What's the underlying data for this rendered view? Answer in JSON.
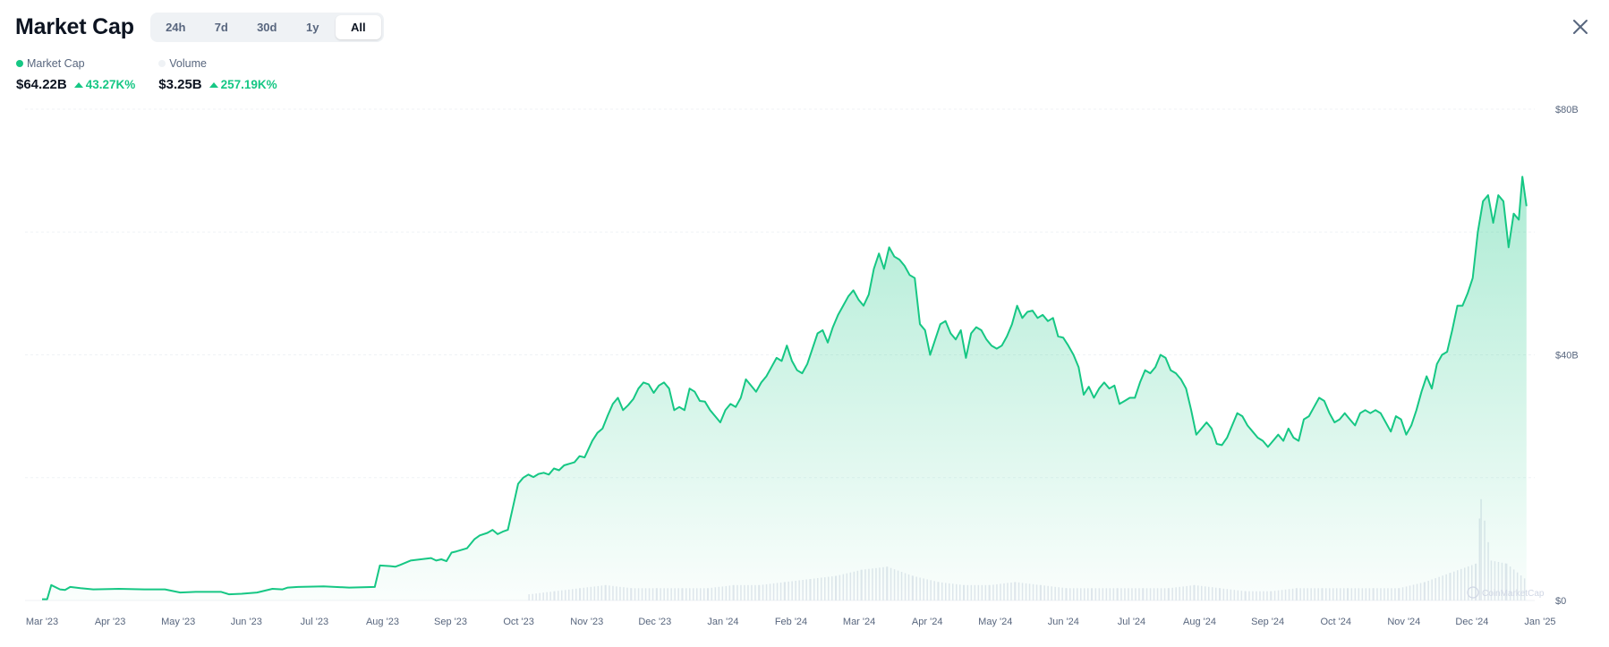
{
  "header": {
    "title": "Market Cap",
    "tabs": [
      "24h",
      "7d",
      "30d",
      "1y",
      "All"
    ],
    "active_tab": "All"
  },
  "legend": [
    {
      "label": "Market Cap",
      "value": "$64.22B",
      "change": "43.27K%",
      "color": "#16c784"
    },
    {
      "label": "Volume",
      "value": "$3.25B",
      "change": "257.19K%",
      "color": "#eff2f5"
    }
  ],
  "watermark": "CoinMarketCap",
  "chart_data": {
    "type": "area",
    "title": "Market Cap",
    "x_ticks": [
      "Mar '23",
      "Apr '23",
      "May '23",
      "Jun '23",
      "Jul '23",
      "Aug '23",
      "Sep '23",
      "Oct '23",
      "Nov '23",
      "Dec '23",
      "Jan '24",
      "Feb '24",
      "Mar '24",
      "Apr '24",
      "May '24",
      "Jun '24",
      "Jul '24",
      "Aug '24",
      "Sep '24",
      "Oct '24",
      "Nov '24",
      "Dec '24",
      "Jan '25"
    ],
    "y_ticks": [
      "$0",
      "$40B",
      "$80B"
    ],
    "y_tick_values": [
      0,
      40,
      80
    ],
    "ylim": [
      0,
      80
    ],
    "y_unit": "B USD",
    "grid": true,
    "x_range_months": [
      0,
      22
    ],
    "series": [
      {
        "name": "Market Cap",
        "color": "#16c784",
        "points": [
          [
            0.0,
            0.2
          ],
          [
            0.1,
            0.2
          ],
          [
            0.18,
            2.5
          ],
          [
            0.35,
            1.8
          ],
          [
            0.45,
            1.7
          ],
          [
            0.55,
            2.2
          ],
          [
            0.75,
            2.0
          ],
          [
            1.0,
            1.8
          ],
          [
            1.5,
            1.9
          ],
          [
            2.0,
            1.8
          ],
          [
            2.4,
            1.8
          ],
          [
            2.7,
            1.3
          ],
          [
            3.0,
            1.4
          ],
          [
            3.2,
            1.4
          ],
          [
            3.5,
            1.4
          ],
          [
            3.65,
            1.0
          ],
          [
            3.9,
            1.1
          ],
          [
            4.2,
            1.3
          ],
          [
            4.5,
            1.9
          ],
          [
            4.7,
            1.8
          ],
          [
            4.8,
            2.1
          ],
          [
            5.0,
            2.2
          ],
          [
            5.5,
            2.3
          ],
          [
            6.0,
            2.1
          ],
          [
            6.5,
            2.2
          ],
          [
            6.6,
            5.7
          ],
          [
            6.8,
            5.6
          ],
          [
            6.9,
            5.5
          ],
          [
            7.0,
            5.8
          ],
          [
            7.2,
            6.5
          ],
          [
            7.4,
            6.7
          ],
          [
            7.6,
            6.9
          ],
          [
            7.7,
            6.5
          ],
          [
            7.8,
            6.7
          ],
          [
            7.9,
            6.4
          ],
          [
            8.0,
            7.8
          ],
          [
            8.1,
            8.0
          ],
          [
            8.3,
            8.5
          ],
          [
            8.45,
            10.0
          ],
          [
            8.55,
            10.6
          ],
          [
            8.7,
            11.0
          ],
          [
            8.8,
            11.5
          ],
          [
            8.9,
            10.8
          ],
          [
            9.0,
            11.2
          ],
          [
            9.1,
            11.5
          ],
          [
            9.2,
            15.2
          ],
          [
            9.3,
            19.0
          ],
          [
            9.4,
            20.0
          ],
          [
            9.5,
            20.5
          ],
          [
            9.6,
            20.1
          ],
          [
            9.7,
            20.6
          ],
          [
            9.8,
            20.8
          ],
          [
            9.9,
            20.5
          ],
          [
            10.0,
            21.5
          ],
          [
            10.1,
            21.2
          ],
          [
            10.2,
            22.0
          ],
          [
            10.4,
            22.5
          ],
          [
            10.5,
            23.5
          ],
          [
            10.6,
            23.3
          ],
          [
            10.75,
            26.0
          ],
          [
            10.85,
            27.3
          ],
          [
            10.95,
            28.0
          ],
          [
            11.05,
            30.1
          ],
          [
            11.15,
            32.0
          ],
          [
            11.25,
            33.0
          ],
          [
            11.35,
            31.0
          ],
          [
            11.45,
            31.8
          ],
          [
            11.55,
            32.8
          ],
          [
            11.65,
            34.5
          ],
          [
            11.75,
            35.5
          ],
          [
            11.85,
            35.2
          ],
          [
            11.95,
            33.8
          ],
          [
            12.05,
            35.0
          ],
          [
            12.15,
            35.5
          ],
          [
            12.25,
            34.5
          ],
          [
            12.35,
            31.0
          ],
          [
            12.45,
            31.5
          ],
          [
            12.55,
            31.0
          ],
          [
            12.65,
            34.5
          ],
          [
            12.75,
            34.0
          ],
          [
            12.85,
            32.5
          ],
          [
            12.95,
            32.4
          ],
          [
            13.05,
            31.0
          ],
          [
            13.15,
            30.0
          ],
          [
            13.25,
            29.0
          ],
          [
            13.35,
            31.0
          ],
          [
            13.45,
            32.0
          ],
          [
            13.55,
            31.5
          ],
          [
            13.65,
            33.0
          ],
          [
            13.75,
            36.0
          ],
          [
            13.85,
            35.0
          ],
          [
            13.95,
            34.0
          ],
          [
            14.05,
            35.5
          ],
          [
            14.15,
            36.5
          ],
          [
            14.25,
            38.0
          ],
          [
            14.35,
            39.5
          ],
          [
            14.45,
            39.0
          ],
          [
            14.55,
            41.5
          ],
          [
            14.65,
            39.0
          ],
          [
            14.75,
            37.5
          ],
          [
            14.85,
            37.0
          ],
          [
            14.95,
            38.5
          ],
          [
            15.05,
            41.0
          ],
          [
            15.15,
            43.5
          ],
          [
            15.25,
            44.0
          ],
          [
            15.35,
            42.0
          ],
          [
            15.45,
            44.5
          ],
          [
            15.55,
            46.5
          ],
          [
            15.65,
            48.0
          ],
          [
            15.75,
            49.5
          ],
          [
            15.85,
            50.5
          ],
          [
            15.95,
            49.0
          ],
          [
            16.05,
            48.0
          ],
          [
            16.15,
            49.8
          ],
          [
            16.25,
            54.0
          ],
          [
            16.35,
            56.5
          ],
          [
            16.45,
            54.0
          ],
          [
            16.55,
            57.5
          ],
          [
            16.65,
            56.0
          ],
          [
            16.75,
            55.5
          ],
          [
            16.85,
            54.5
          ],
          [
            16.95,
            53.0
          ],
          [
            17.05,
            52.5
          ],
          [
            17.15,
            45.0
          ],
          [
            17.25,
            44.0
          ],
          [
            17.35,
            40.0
          ],
          [
            17.45,
            42.5
          ],
          [
            17.55,
            45.0
          ],
          [
            17.65,
            45.5
          ],
          [
            17.75,
            43.5
          ],
          [
            17.85,
            42.5
          ],
          [
            17.95,
            44.0
          ],
          [
            18.05,
            39.5
          ],
          [
            18.15,
            43.5
          ],
          [
            18.25,
            44.5
          ],
          [
            18.35,
            44.0
          ],
          [
            18.45,
            42.5
          ],
          [
            18.55,
            41.5
          ],
          [
            18.65,
            41.0
          ],
          [
            18.75,
            41.5
          ],
          [
            18.85,
            43.0
          ],
          [
            18.95,
            45.0
          ],
          [
            19.05,
            48.0
          ],
          [
            19.15,
            46.0
          ],
          [
            19.25,
            47.0
          ],
          [
            19.35,
            47.2
          ],
          [
            19.45,
            46.0
          ],
          [
            19.55,
            46.5
          ],
          [
            19.65,
            45.5
          ],
          [
            19.75,
            46.0
          ],
          [
            19.85,
            43.0
          ],
          [
            19.95,
            42.8
          ],
          [
            20.05,
            41.5
          ],
          [
            20.15,
            40.0
          ],
          [
            20.25,
            38.0
          ],
          [
            20.35,
            33.5
          ],
          [
            20.45,
            34.8
          ],
          [
            20.55,
            33.0
          ],
          [
            20.65,
            34.5
          ],
          [
            20.75,
            35.5
          ],
          [
            20.85,
            34.5
          ],
          [
            20.95,
            35.0
          ],
          [
            21.05,
            32.0
          ],
          [
            21.15,
            32.5
          ],
          [
            21.25,
            33.0
          ],
          [
            21.35,
            33.0
          ],
          [
            21.45,
            35.5
          ],
          [
            21.55,
            37.5
          ],
          [
            21.65,
            37.0
          ],
          [
            21.75,
            38.0
          ],
          [
            21.85,
            40.0
          ],
          [
            21.95,
            39.5
          ],
          [
            22.05,
            37.5
          ],
          [
            22.15,
            37.0
          ],
          [
            22.25,
            36.0
          ],
          [
            22.35,
            34.5
          ],
          [
            22.45,
            31.0
          ],
          [
            22.55,
            27.0
          ],
          [
            22.65,
            28.0
          ],
          [
            22.75,
            29.0
          ],
          [
            22.85,
            28.0
          ],
          [
            22.95,
            25.5
          ],
          [
            23.05,
            25.3
          ],
          [
            23.15,
            26.5
          ],
          [
            23.25,
            28.5
          ],
          [
            23.35,
            30.5
          ],
          [
            23.45,
            30.0
          ],
          [
            23.55,
            28.5
          ],
          [
            23.65,
            27.5
          ],
          [
            23.75,
            26.5
          ],
          [
            23.85,
            26.0
          ],
          [
            23.95,
            25.0
          ],
          [
            24.05,
            26.0
          ],
          [
            24.15,
            27.0
          ],
          [
            24.25,
            26.0
          ],
          [
            24.35,
            28.0
          ],
          [
            24.45,
            26.5
          ],
          [
            24.55,
            26.0
          ],
          [
            24.65,
            29.5
          ],
          [
            24.75,
            30.0
          ],
          [
            24.85,
            31.5
          ],
          [
            24.95,
            33.0
          ],
          [
            25.05,
            32.5
          ],
          [
            25.15,
            30.5
          ],
          [
            25.25,
            29.0
          ],
          [
            25.35,
            29.5
          ],
          [
            25.45,
            30.5
          ],
          [
            25.55,
            29.5
          ],
          [
            25.65,
            28.5
          ],
          [
            25.75,
            30.5
          ],
          [
            25.85,
            31.0
          ],
          [
            25.95,
            30.5
          ],
          [
            26.05,
            31.0
          ],
          [
            26.15,
            30.5
          ],
          [
            26.25,
            29.0
          ],
          [
            26.35,
            27.5
          ],
          [
            26.45,
            30.0
          ],
          [
            26.55,
            29.5
          ],
          [
            26.65,
            27.0
          ],
          [
            26.75,
            28.5
          ],
          [
            26.85,
            31.0
          ],
          [
            26.95,
            34.0
          ],
          [
            27.05,
            36.5
          ],
          [
            27.15,
            34.5
          ],
          [
            27.25,
            38.5
          ],
          [
            27.35,
            40.0
          ],
          [
            27.45,
            40.5
          ],
          [
            27.55,
            44.0
          ],
          [
            27.65,
            48.0
          ],
          [
            27.75,
            48.0
          ],
          [
            27.85,
            50.0
          ],
          [
            27.95,
            52.5
          ],
          [
            28.05,
            60.0
          ],
          [
            28.15,
            65.0
          ],
          [
            28.25,
            66.0
          ],
          [
            28.35,
            61.5
          ],
          [
            28.45,
            66.0
          ],
          [
            28.55,
            65.0
          ],
          [
            28.65,
            57.5
          ],
          [
            28.75,
            63.0
          ],
          [
            28.85,
            62.0
          ],
          [
            28.92,
            69.0
          ],
          [
            29.0,
            64.2
          ]
        ]
      },
      {
        "name": "Volume",
        "color": "#eff2f5",
        "points": [
          [
            9.5,
            1.0
          ],
          [
            10.0,
            1.5
          ],
          [
            10.5,
            2.0
          ],
          [
            11.0,
            2.5
          ],
          [
            11.5,
            2.0
          ],
          [
            12.0,
            2.0
          ],
          [
            12.5,
            2.0
          ],
          [
            13.0,
            2.0
          ],
          [
            13.5,
            2.5
          ],
          [
            14.0,
            2.5
          ],
          [
            14.5,
            3.0
          ],
          [
            15.0,
            3.5
          ],
          [
            15.5,
            4.0
          ],
          [
            16.0,
            5.0
          ],
          [
            16.5,
            5.5
          ],
          [
            17.0,
            4.0
          ],
          [
            17.5,
            3.0
          ],
          [
            18.0,
            2.5
          ],
          [
            18.5,
            2.5
          ],
          [
            19.0,
            3.0
          ],
          [
            19.5,
            2.5
          ],
          [
            20.0,
            2.0
          ],
          [
            20.5,
            2.0
          ],
          [
            21.0,
            2.0
          ],
          [
            21.5,
            2.0
          ],
          [
            22.0,
            2.0
          ],
          [
            22.5,
            2.5
          ],
          [
            23.0,
            2.0
          ],
          [
            23.5,
            1.5
          ],
          [
            24.0,
            1.5
          ],
          [
            24.5,
            2.0
          ],
          [
            25.0,
            2.0
          ],
          [
            25.5,
            2.0
          ],
          [
            26.0,
            2.0
          ],
          [
            26.5,
            2.0
          ],
          [
            27.0,
            3.0
          ],
          [
            27.5,
            4.5
          ],
          [
            28.0,
            6.0
          ],
          [
            28.1,
            16.5
          ],
          [
            28.3,
            6.5
          ],
          [
            28.6,
            6.0
          ],
          [
            29.0,
            3.25
          ]
        ]
      }
    ],
    "x_domain": [
      0,
      29
    ]
  }
}
